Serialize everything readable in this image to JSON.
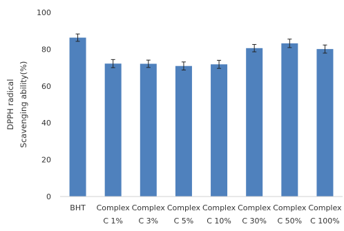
{
  "chart_data": {
    "type": "bar",
    "categories": [
      [
        "BHT",
        ""
      ],
      [
        "Complex",
        "C 1%"
      ],
      [
        "Complex",
        "C 3%"
      ],
      [
        "Complex",
        "C 5%"
      ],
      [
        "Complex",
        "C 10%"
      ],
      [
        "Complex",
        "C 30%"
      ],
      [
        "Complex",
        "C 50%"
      ],
      [
        "Complex",
        "C 100%"
      ]
    ],
    "series": [
      {
        "values": [
          86.3,
          72.2,
          72.1,
          70.9,
          71.8,
          80.6,
          83.2,
          80.1
        ],
        "errors": [
          2.0,
          2.2,
          2.0,
          2.2,
          2.2,
          2.0,
          2.3,
          2.2
        ]
      }
    ],
    "bar_color": "#4F81BD",
    "ylabel_lines": [
      "DPPH radical",
      "Scavenging ability(%)"
    ],
    "xlabel": "",
    "ylim": [
      0,
      100
    ],
    "yticks": [
      0,
      20,
      40,
      60,
      80,
      100
    ],
    "grid": false
  }
}
